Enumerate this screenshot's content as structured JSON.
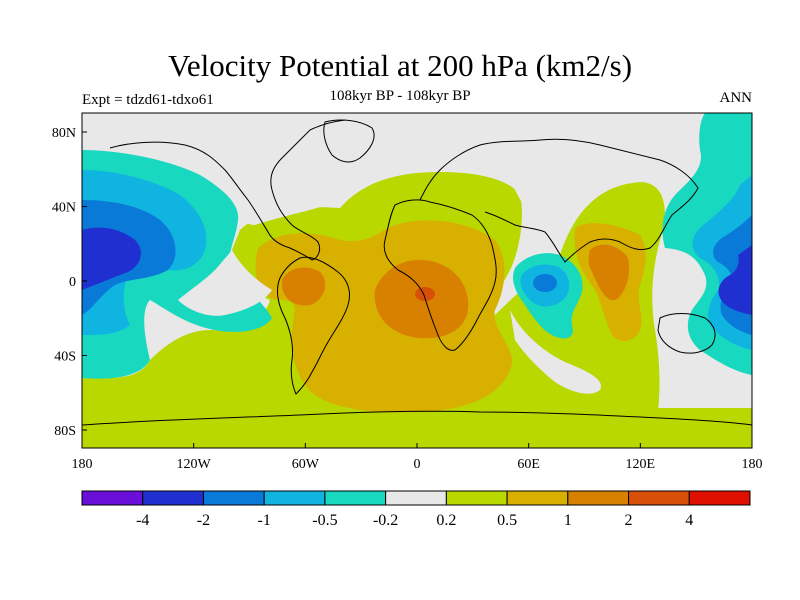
{
  "title": "Velocity Potential at 200 hPa (km2/s)",
  "subtitle": "108kyr BP - 108kyr BP",
  "experiment": "Expt = tdzd61-tdxo61",
  "season": "ANN",
  "axes": {
    "x_ticks": [
      "180",
      "120W",
      "60W",
      "0",
      "60E",
      "120E",
      "180"
    ],
    "y_ticks": [
      "80N",
      "40N",
      "0",
      "40S",
      "80S"
    ]
  },
  "colorbar": {
    "colors": [
      "#6a0fd8",
      "#2030d0",
      "#0a7ad8",
      "#10b4e0",
      "#18d8c0",
      "#e8e8e8",
      "#b8d800",
      "#d8b000",
      "#d88000",
      "#d85008",
      "#e01000"
    ],
    "labels": [
      "-4",
      "-2",
      "-1",
      "-0.5",
      "-0.2",
      "0.2",
      "0.5",
      "1",
      "2",
      "4"
    ]
  },
  "legend_colors": {
    "neg4": "#6a0fd8",
    "neg2": "#2030d0",
    "neg1": "#0a7ad8",
    "neg05": "#10b4e0",
    "neg02": "#18d8c0",
    "zero": "#e8e8e8",
    "pos02": "#b8d800",
    "pos05": "#d8b000",
    "pos1": "#d88000",
    "pos2": "#d85008",
    "pos4": "#e01000"
  }
}
